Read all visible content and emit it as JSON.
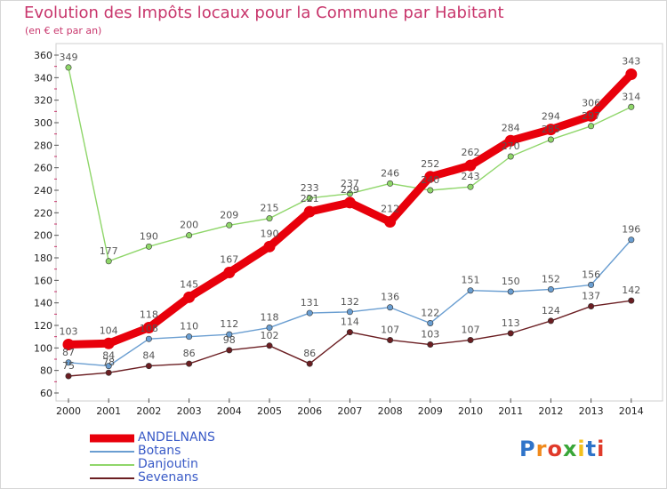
{
  "title": "Evolution des Impôts locaux pour la Commune par Habitant",
  "subtitle": "(en € et par an)",
  "logo": "Proxiti",
  "chart_data": {
    "type": "line",
    "x": [
      "2000",
      "2001",
      "2002",
      "2003",
      "2004",
      "2005",
      "2006",
      "2007",
      "2008",
      "2009",
      "2010",
      "2011",
      "2012",
      "2013",
      "2014"
    ],
    "ylim": [
      60,
      360
    ],
    "yticks": [
      60,
      80,
      100,
      120,
      140,
      160,
      180,
      200,
      220,
      240,
      260,
      280,
      300,
      320,
      340,
      360
    ],
    "grid": false,
    "legend_position": "bottom-left",
    "series": [
      {
        "name": "ANDELNANS",
        "color": "#e8000b",
        "values": [
          103,
          104,
          118,
          145,
          167,
          190,
          221,
          229,
          212,
          252,
          262,
          284,
          294,
          306,
          343
        ]
      },
      {
        "name": "Botans",
        "color": "#6a9ed1",
        "values": [
          87,
          84,
          108,
          110,
          112,
          118,
          131,
          132,
          136,
          122,
          151,
          150,
          152,
          156,
          196
        ]
      },
      {
        "name": "Danjoutin",
        "color": "#8fd66a",
        "values": [
          349,
          177,
          190,
          200,
          209,
          215,
          233,
          237,
          246,
          240,
          243,
          270,
          285,
          297,
          314
        ]
      },
      {
        "name": "Sevenans",
        "color": "#6b1e22",
        "values": [
          75,
          78,
          84,
          86,
          98,
          102,
          86,
          114,
          107,
          103,
          107,
          113,
          124,
          137,
          142
        ]
      }
    ]
  }
}
